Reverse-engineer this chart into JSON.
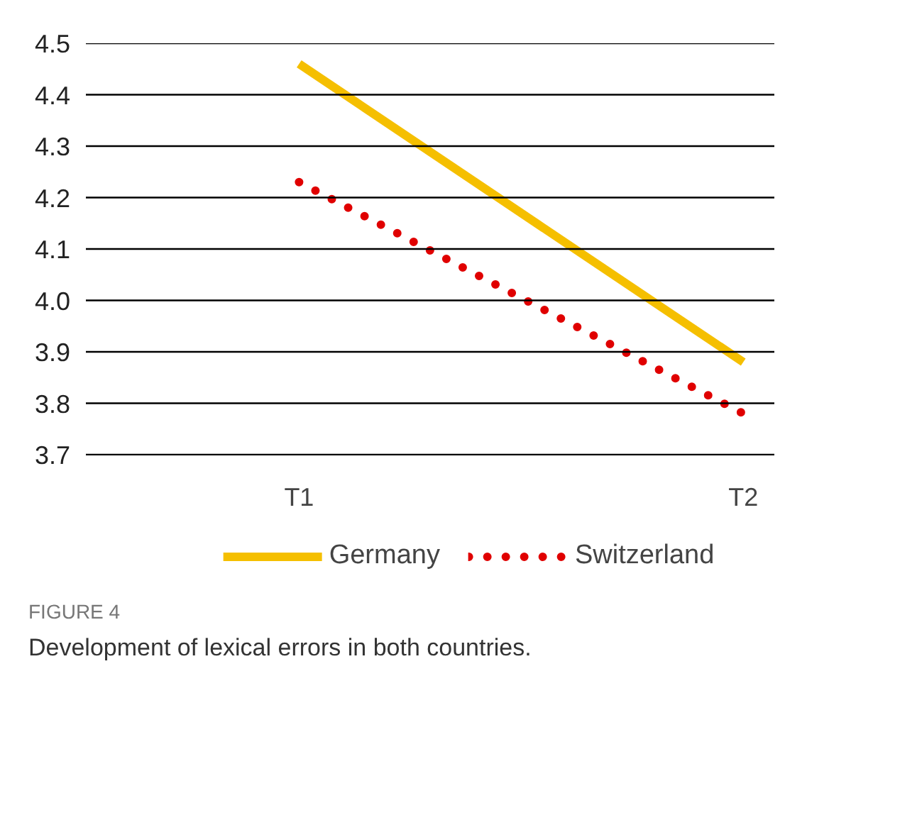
{
  "chart_data": {
    "type": "line",
    "categories": [
      "T1",
      "T2"
    ],
    "series": [
      {
        "name": "Germany",
        "color": "#f5bf00",
        "values": [
          4.46,
          3.88
        ],
        "line_style": "solid"
      },
      {
        "name": "Switzerland",
        "color": "#e00000",
        "values": [
          4.23,
          3.78
        ],
        "line_style": "dotted"
      }
    ],
    "ylim": [
      3.7,
      4.5
    ],
    "yticks": [
      {
        "value": 3.7,
        "label": "3.7"
      },
      {
        "value": 3.8,
        "label": "3.8"
      },
      {
        "value": 3.9,
        "label": "3.9"
      },
      {
        "value": 4.0,
        "label": "4.0"
      },
      {
        "value": 4.1,
        "label": "4.1"
      },
      {
        "value": 4.2,
        "label": "4.2"
      },
      {
        "value": 4.3,
        "label": "4.3"
      },
      {
        "value": 4.4,
        "label": "4.4"
      },
      {
        "value": 4.5,
        "label": "4.5"
      }
    ],
    "grid": "y",
    "legend": "bottom",
    "marker": "none",
    "annotations": [
      "FIGURE 4",
      "Development of lexical errors in both countries."
    ]
  }
}
